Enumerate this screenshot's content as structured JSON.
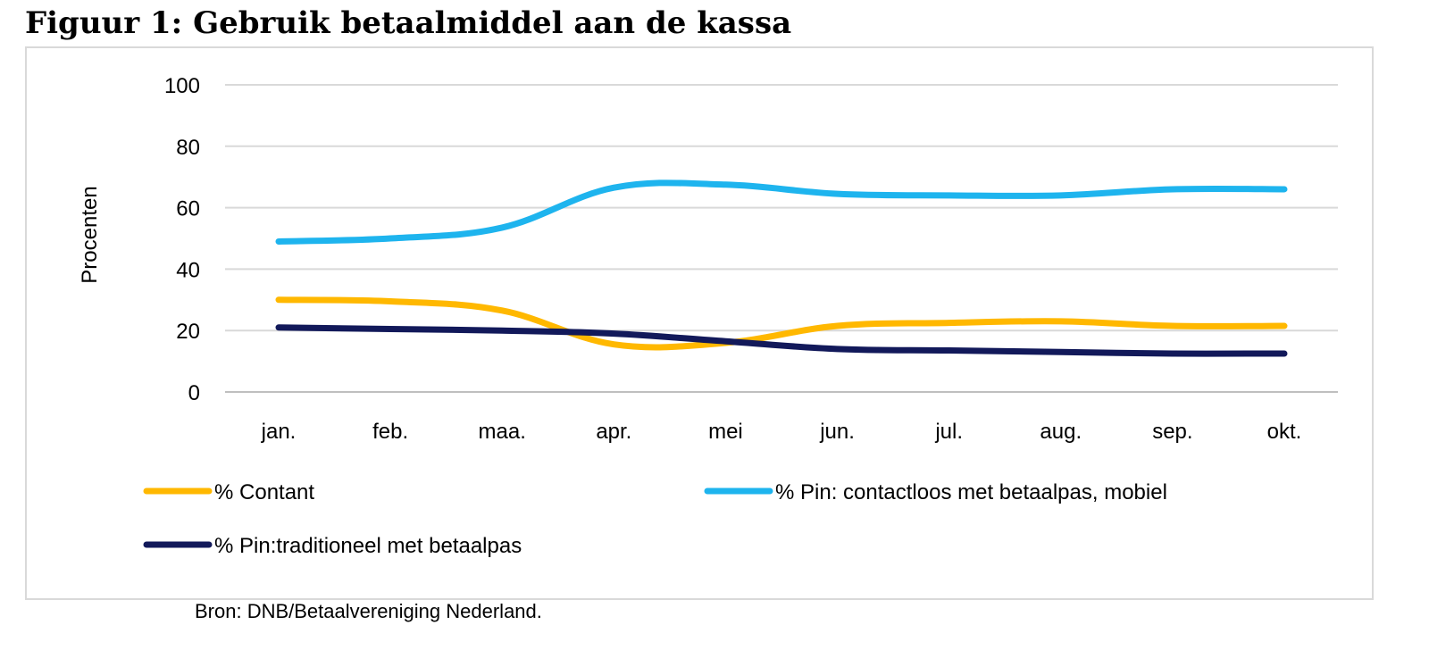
{
  "figure": {
    "title": "Figuur 1: Gebruik betaalmiddel aan de kassa",
    "source": "Bron: DNB/Betaalvereniging Nederland."
  },
  "chart_data": {
    "type": "line",
    "title": "Figuur 1: Gebruik betaalmiddel aan de kassa",
    "xlabel": "",
    "ylabel": "Procenten",
    "ylim": [
      0,
      100
    ],
    "yticks": [
      0,
      20,
      40,
      60,
      80,
      100
    ],
    "grid": true,
    "legend_position": "bottom",
    "categories": [
      "jan.",
      "feb.",
      "maa.",
      "apr.",
      "mei",
      "jun.",
      "jul.",
      "aug.",
      "sep.",
      "okt."
    ],
    "series": [
      {
        "name": "% Contant",
        "color": "#FFB800",
        "values": [
          30,
          29.5,
          26.5,
          15.5,
          16,
          21.5,
          22.5,
          23,
          21.5,
          21.5
        ]
      },
      {
        "name": "% Pin: contactloos met betaalpas, mobiel",
        "color": "#1EB4EE",
        "values": [
          49,
          50,
          53.5,
          66.5,
          67.5,
          64.5,
          64,
          64,
          66,
          66
        ]
      },
      {
        "name": "% Pin:traditioneel met betaalpas",
        "color": "#12195A",
        "values": [
          21,
          20.5,
          20,
          19,
          16.5,
          14,
          13.5,
          13,
          12.5,
          12.5
        ]
      }
    ]
  }
}
